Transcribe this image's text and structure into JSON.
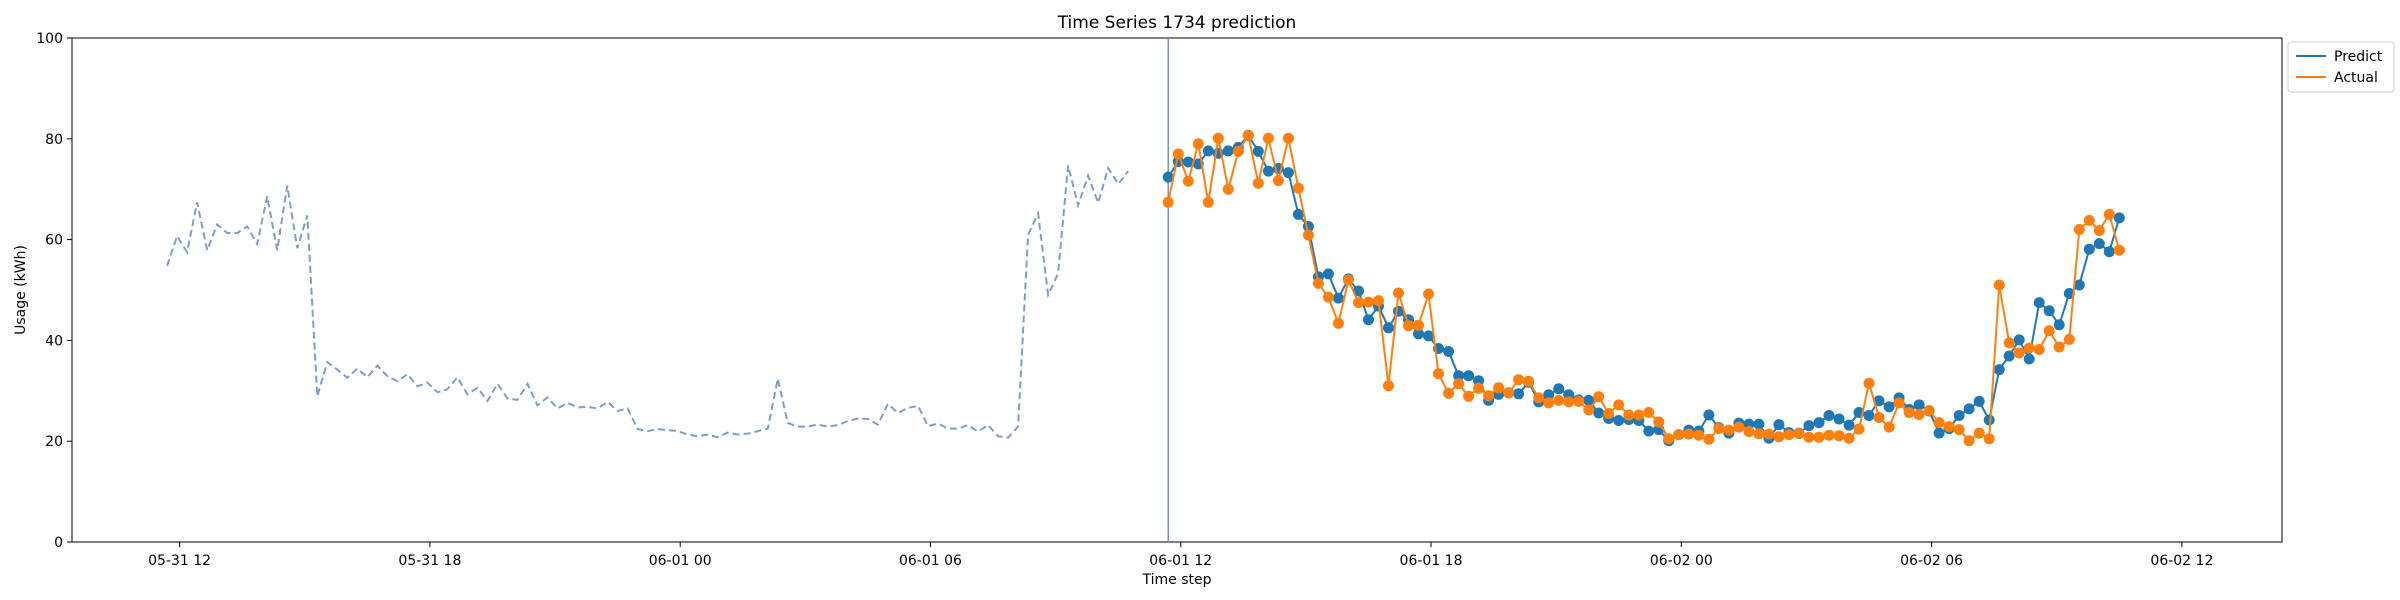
{
  "chart_data": {
    "type": "line",
    "title": "Time Series 1734 prediction",
    "xlabel": "Time step",
    "ylabel": "Usage (kWh)",
    "ylim": [
      0,
      100
    ],
    "yticks": [
      0,
      20,
      40,
      60,
      80,
      100
    ],
    "xlim": [
      -4.3,
      84.0
    ],
    "xticks": [
      {
        "pos": 0,
        "label": "05-31 12"
      },
      {
        "pos": 10,
        "label": "05-31 18"
      },
      {
        "pos": 20,
        "label": "06-01 00"
      },
      {
        "pos": 30,
        "label": "06-01 06"
      },
      {
        "pos": 40,
        "label": "06-01 12"
      },
      {
        "pos": 50,
        "label": "06-01 18"
      },
      {
        "pos": 60,
        "label": "06-02 00"
      },
      {
        "pos": 70,
        "label": "06-02 06"
      },
      {
        "pos": 80,
        "label": "06-02 12"
      }
    ],
    "forecast_start": 39.5,
    "legend_position": "upper right outside",
    "history": {
      "x_start": -0.5,
      "x_step": 0.4,
      "color": "#7d9dc9",
      "values": [
        54.8,
        60.7,
        57.5,
        67.4,
        57.9,
        63.0,
        61.3,
        61.3,
        62.6,
        59.1,
        68.6,
        57.9,
        70.7,
        58.3,
        64.8,
        28.9,
        35.7,
        34.2,
        32.6,
        34.4,
        32.7,
        35.0,
        32.9,
        31.9,
        33.3,
        30.9,
        31.6,
        29.7,
        30.3,
        32.7,
        29.3,
        30.6,
        28.0,
        31.4,
        28.5,
        28.2,
        31.4,
        27.1,
        28.7,
        26.5,
        27.6,
        26.7,
        26.8,
        26.5,
        27.8,
        26.0,
        26.5,
        22.4,
        22.0,
        22.4,
        22.2,
        22.0,
        21.3,
        21.0,
        21.3,
        20.8,
        21.7,
        21.3,
        21.5,
        22.0,
        22.5,
        32.4,
        23.6,
        22.9,
        22.9,
        23.3,
        22.9,
        23.2,
        24.0,
        24.5,
        24.4,
        23.3,
        27.4,
        25.6,
        26.6,
        27.0,
        23.0,
        23.5,
        22.5,
        22.5,
        23.2,
        21.9,
        23.2,
        21.0,
        20.7,
        22.9,
        61.0,
        65.2,
        49.0,
        53.3,
        74.7,
        66.8,
        72.7,
        67.3,
        74.2,
        71.0,
        73.6
      ]
    },
    "forecast_x_start": 39.5,
    "forecast_x_step": 0.4,
    "series": [
      {
        "name": "Predict",
        "color": "#1f77b4",
        "values": [
          72.4,
          75.5,
          75.4,
          75.0,
          77.6,
          77.1,
          77.6,
          78.3,
          80.7,
          77.5,
          73.6,
          74.1,
          73.3,
          65.0,
          62.6,
          52.6,
          53.2,
          48.4,
          52.2,
          49.8,
          44.1,
          46.8,
          42.5,
          45.8,
          44.1,
          41.3,
          40.9,
          38.4,
          37.8,
          33.0,
          33.0,
          32.0,
          28.1,
          29.3,
          29.6,
          29.4,
          31.7,
          27.8,
          29.2,
          30.4,
          29.2,
          28.2,
          28.1,
          25.6,
          24.5,
          24.1,
          24.3,
          24.1,
          22.0,
          22.3,
          20.1,
          21.3,
          22.2,
          22.0,
          25.2,
          22.7,
          21.6,
          23.6,
          23.4,
          23.4,
          20.6,
          23.3,
          21.7,
          21.6,
          23.1,
          23.7,
          25.1,
          24.4,
          23.2,
          25.7,
          25.1,
          28.0,
          26.8,
          28.6,
          26.3,
          27.2,
          26.0,
          21.6,
          22.5,
          25.1,
          26.4,
          27.9,
          24.2,
          34.2,
          36.9,
          40.1,
          36.3,
          47.5,
          45.9,
          43.1,
          49.3,
          51.0,
          58.1,
          59.2,
          57.6,
          64.3
        ]
      },
      {
        "name": "Actual",
        "color": "#ff7f0e",
        "values": [
          67.4,
          77.0,
          71.6,
          79.0,
          67.4,
          80.1,
          70.0,
          77.5,
          80.7,
          71.2,
          80.1,
          71.7,
          80.1,
          70.2,
          60.9,
          51.3,
          48.6,
          43.4,
          52.0,
          47.5,
          47.6,
          47.9,
          31.0,
          49.4,
          42.9,
          43.0,
          49.2,
          33.4,
          29.5,
          31.4,
          28.9,
          30.5,
          29.0,
          30.6,
          29.6,
          32.2,
          31.9,
          28.6,
          27.6,
          28.1,
          27.8,
          27.9,
          26.2,
          28.8,
          25.5,
          27.2,
          25.2,
          25.2,
          25.7,
          23.8,
          20.5,
          21.3,
          21.4,
          21.2,
          20.4,
          22.5,
          22.2,
          22.8,
          21.9,
          21.5,
          21.4,
          20.9,
          21.3,
          21.5,
          20.8,
          20.8,
          21.2,
          21.1,
          20.6,
          22.4,
          31.5,
          24.7,
          22.8,
          27.6,
          25.7,
          25.3,
          26.1,
          23.7,
          22.9,
          22.3,
          20.1,
          21.6,
          20.5,
          51.0,
          39.5,
          37.5,
          38.5,
          38.2,
          41.9,
          38.7,
          40.2,
          62.0,
          63.8,
          61.8,
          65.0,
          57.9
        ]
      }
    ]
  }
}
